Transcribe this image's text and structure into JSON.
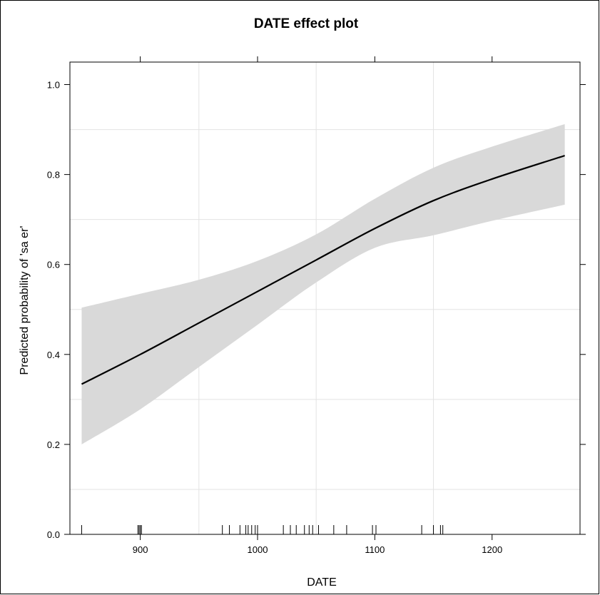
{
  "chart_data": {
    "type": "line",
    "title": "DATE effect plot",
    "xlabel": "DATE",
    "ylabel": "Predicted probability of 'sa er'",
    "xlim": [
      840,
      1275
    ],
    "ylim": [
      0,
      1.05
    ],
    "xticks": [
      900,
      1000,
      1100,
      1200
    ],
    "yticks": [
      0.0,
      0.2,
      0.4,
      0.6,
      0.8,
      1.0
    ],
    "xtick_labels": [
      "900",
      "1000",
      "1100",
      "1200"
    ],
    "ytick_labels": [
      "0.0",
      "0.2",
      "0.4",
      "0.6",
      "0.8",
      "1.0"
    ],
    "grid": true,
    "series": [
      {
        "x": [
          850,
          900,
          950,
          1000,
          1050,
          1100,
          1150,
          1200,
          1262
        ],
        "y": [
          0.334,
          0.4,
          0.47,
          0.54,
          0.61,
          0.68,
          0.742,
          0.79,
          0.842
        ],
        "lower": [
          0.2,
          0.278,
          0.372,
          0.466,
          0.56,
          0.637,
          0.665,
          0.697,
          0.733
        ],
        "upper": [
          0.504,
          0.535,
          0.566,
          0.608,
          0.667,
          0.746,
          0.815,
          0.862,
          0.912
        ]
      }
    ],
    "band_color": "#d9d9d9",
    "line_color": "#000000",
    "grid_color": "#e3e3e3",
    "rug": [
      850,
      898,
      899,
      900,
      901,
      970,
      976,
      985,
      990,
      992,
      995,
      998,
      1000,
      1022,
      1028,
      1033,
      1040,
      1044,
      1047,
      1052,
      1065,
      1076,
      1098,
      1101,
      1140,
      1150,
      1156,
      1158
    ]
  }
}
